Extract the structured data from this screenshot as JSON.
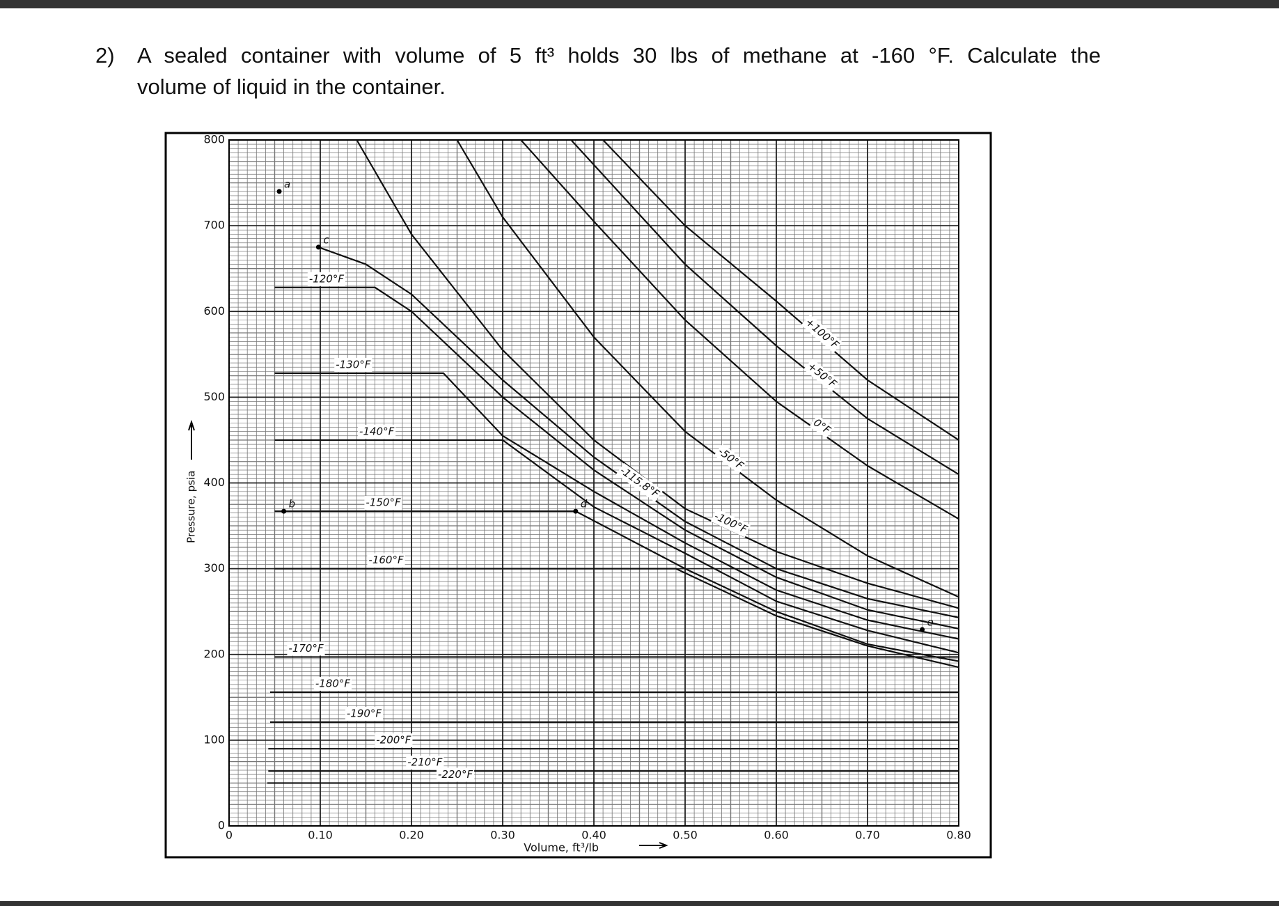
{
  "question": {
    "number": "2)",
    "lines": [
      "A sealed container with volume of 5 ft³ holds 30 lbs of methane at -160 °F. Calculate the",
      "volume of liquid in the container."
    ]
  },
  "chart_data": {
    "type": "line",
    "xlabel": "Volume, ft³/lb",
    "ylabel": "Pressure, psia",
    "xlim": [
      0,
      0.8
    ],
    "ylim": [
      0,
      800
    ],
    "xticks": [
      0,
      {
        "value": 0.1,
        "label": "0.10"
      },
      {
        "value": 0.2,
        "label": "0.20"
      },
      {
        "value": 0.3,
        "label": "0.30"
      },
      {
        "value": 0.4,
        "label": "0.40"
      },
      {
        "value": 0.5,
        "label": "0.50"
      },
      {
        "value": 0.6,
        "label": "0.60"
      },
      {
        "value": 0.7,
        "label": "0.70"
      },
      {
        "value": 0.8,
        "label": "0.80"
      }
    ],
    "yticks": [
      0,
      100,
      200,
      300,
      400,
      500,
      600,
      700,
      800
    ],
    "grid": true,
    "color": "#111111",
    "series": [
      {
        "name": "+100°F",
        "x": [
          0.41,
          0.5,
          0.6,
          0.7,
          0.8
        ],
        "values": [
          800,
          700,
          612,
          520,
          450
        ]
      },
      {
        "name": "+50°F",
        "x": [
          0.375,
          0.5,
          0.6,
          0.7,
          0.8
        ],
        "values": [
          800,
          655,
          560,
          475,
          410
        ]
      },
      {
        "name": "0°F",
        "x": [
          0.32,
          0.4,
          0.5,
          0.6,
          0.7,
          0.8
        ],
        "values": [
          800,
          705,
          590,
          495,
          420,
          358
        ]
      },
      {
        "name": "-50°F",
        "x": [
          0.25,
          0.3,
          0.4,
          0.5,
          0.6,
          0.7,
          0.8
        ],
        "values": [
          800,
          710,
          570,
          460,
          380,
          315,
          267
        ]
      },
      {
        "name": "-100°F",
        "x": [
          0.14,
          0.2,
          0.3,
          0.4,
          0.5,
          0.6,
          0.7,
          0.8
        ],
        "values": [
          800,
          690,
          555,
          450,
          370,
          320,
          283,
          254
        ]
      },
      {
        "name": "-115.8°F",
        "x": [
          0.098,
          0.15,
          0.2,
          0.3,
          0.4,
          0.5,
          0.6,
          0.7,
          0.8
        ],
        "values": [
          675,
          655,
          620,
          520,
          430,
          355,
          300,
          265,
          243
        ]
      },
      {
        "name": "-120°F",
        "x": [
          0.05,
          0.16,
          0.2,
          0.3,
          0.4,
          0.5,
          0.6,
          0.7,
          0.8
        ],
        "values": [
          628,
          628,
          600,
          500,
          415,
          345,
          290,
          252,
          230
        ]
      },
      {
        "name": "-130°F",
        "x": [
          0.05,
          0.235,
          0.3,
          0.4,
          0.5,
          0.6,
          0.7,
          0.8
        ],
        "values": [
          528,
          528,
          455,
          390,
          330,
          275,
          240,
          218
        ]
      },
      {
        "name": "-140°F",
        "x": [
          0.05,
          0.3,
          0.4,
          0.5,
          0.6,
          0.7,
          0.8
        ],
        "values": [
          450,
          450,
          372,
          318,
          262,
          228,
          202
        ]
      },
      {
        "name": "-150°F",
        "x": [
          0.05,
          0.38,
          0.5,
          0.6,
          0.7,
          0.8
        ],
        "values": [
          367,
          367,
          300,
          250,
          212,
          192
        ]
      },
      {
        "name": "-160°F",
        "x": [
          0.05,
          0.49,
          0.6,
          0.7,
          0.8
        ],
        "values": [
          300,
          300,
          245,
          210,
          185
        ]
      },
      {
        "name": "-170°F",
        "x": [
          0.05,
          0.8
        ],
        "values": [
          197,
          197
        ]
      },
      {
        "name": "-180°F",
        "x": [
          0.045,
          0.8
        ],
        "values": [
          156,
          156
        ]
      },
      {
        "name": "-190°F",
        "x": [
          0.045,
          0.8
        ],
        "values": [
          121,
          121
        ]
      },
      {
        "name": "-200°F",
        "x": [
          0.043,
          0.8
        ],
        "values": [
          90,
          90
        ]
      },
      {
        "name": "-210°F",
        "x": [
          0.043,
          0.8
        ],
        "values": [
          64,
          64
        ]
      },
      {
        "name": "-220°F",
        "x": [
          0.042,
          0.8
        ],
        "values": [
          50,
          50
        ]
      }
    ],
    "points": [
      {
        "label": "a",
        "x": 0.055,
        "y": 740
      },
      {
        "label": "b",
        "x": 0.06,
        "y": 367
      },
      {
        "label": "c",
        "x": 0.098,
        "y": 675
      },
      {
        "label": "d",
        "x": 0.38,
        "y": 367
      },
      {
        "label": "e",
        "x": 0.76,
        "y": 229
      }
    ]
  }
}
